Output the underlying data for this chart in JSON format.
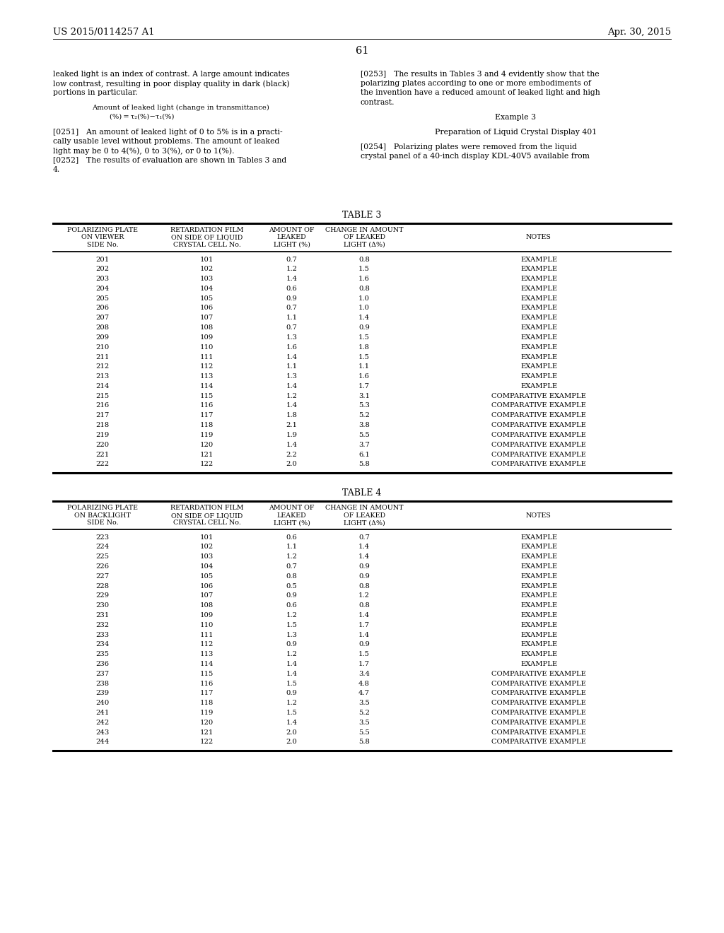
{
  "header_left": "US 2015/0114257 A1",
  "header_right": "Apr. 30, 2015",
  "page_number": "61",
  "left_col_lines": [
    "leaked light is an index of contrast. A large amount indicates",
    "low contrast, resulting in poor display quality in dark (black)",
    "portions in particular.",
    "BLANK",
    "INDENT_Amount of leaked light (change in transmittance)",
    "INDENT2_(%) = τ₂(%)−τ₁(%)",
    "BLANK",
    "[0251] An amount of leaked light of 0 to 5% is in a practi-",
    "cally usable level without problems. The amount of leaked",
    "light may be 0 to 4(%), 0 to 3(%), or 0 to 1(%).",
    "[0252] The results of evaluation are shown in Tables 3 and",
    "4."
  ],
  "right_col_lines": [
    "[0253] The results in Tables 3 and 4 evidently show that the",
    "polarizing plates according to one or more embodiments of",
    "the invention have a reduced amount of leaked light and high",
    "contrast.",
    "BLANK",
    "CENTER_Example 3",
    "BLANK",
    "CENTER_Preparation of Liquid Crystal Display 401",
    "BLANK",
    "[0254] Polarizing plates were removed from the liquid",
    "crystal panel of a 40-inch display KDL-40V5 available from"
  ],
  "table3_title": "TABLE 3",
  "table3_col_headers_line1": [
    "POLARIZING PLATE",
    "RETARDATION FILM",
    "AMOUNT OF",
    "CHANGE IN AMOUNT",
    ""
  ],
  "table3_col_headers_line2": [
    "ON VIEWER",
    "ON SIDE OF LIQUID",
    "LEAKED",
    "OF LEAKED",
    "NOTES"
  ],
  "table3_col_headers_line3": [
    "SIDE No.",
    "CRYSTAL CELL No.",
    "LIGHT (%)",
    "LIGHT (Δ%)",
    ""
  ],
  "table3_data": [
    [
      "201",
      "101",
      "0.7",
      "0.8",
      "EXAMPLE"
    ],
    [
      "202",
      "102",
      "1.2",
      "1.5",
      "EXAMPLE"
    ],
    [
      "203",
      "103",
      "1.4",
      "1.6",
      "EXAMPLE"
    ],
    [
      "204",
      "104",
      "0.6",
      "0.8",
      "EXAMPLE"
    ],
    [
      "205",
      "105",
      "0.9",
      "1.0",
      "EXAMPLE"
    ],
    [
      "206",
      "106",
      "0.7",
      "1.0",
      "EXAMPLE"
    ],
    [
      "207",
      "107",
      "1.1",
      "1.4",
      "EXAMPLE"
    ],
    [
      "208",
      "108",
      "0.7",
      "0.9",
      "EXAMPLE"
    ],
    [
      "209",
      "109",
      "1.3",
      "1.5",
      "EXAMPLE"
    ],
    [
      "210",
      "110",
      "1.6",
      "1.8",
      "EXAMPLE"
    ],
    [
      "211",
      "111",
      "1.4",
      "1.5",
      "EXAMPLE"
    ],
    [
      "212",
      "112",
      "1.1",
      "1.1",
      "EXAMPLE"
    ],
    [
      "213",
      "113",
      "1.3",
      "1.6",
      "EXAMPLE"
    ],
    [
      "214",
      "114",
      "1.4",
      "1.7",
      "EXAMPLE"
    ],
    [
      "215",
      "115",
      "1.2",
      "3.1",
      "COMPARATIVE EXAMPLE"
    ],
    [
      "216",
      "116",
      "1.4",
      "5.3",
      "COMPARATIVE EXAMPLE"
    ],
    [
      "217",
      "117",
      "1.8",
      "5.2",
      "COMPARATIVE EXAMPLE"
    ],
    [
      "218",
      "118",
      "2.1",
      "3.8",
      "COMPARATIVE EXAMPLE"
    ],
    [
      "219",
      "119",
      "1.9",
      "5.5",
      "COMPARATIVE EXAMPLE"
    ],
    [
      "220",
      "120",
      "1.4",
      "3.7",
      "COMPARATIVE EXAMPLE"
    ],
    [
      "221",
      "121",
      "2.2",
      "6.1",
      "COMPARATIVE EXAMPLE"
    ],
    [
      "222",
      "122",
      "2.0",
      "5.8",
      "COMPARATIVE EXAMPLE"
    ]
  ],
  "table4_title": "TABLE 4",
  "table4_col_headers_line1": [
    "POLARIZING PLATE",
    "RETARDATION FILM",
    "AMOUNT OF",
    "CHANGE IN AMOUNT",
    ""
  ],
  "table4_col_headers_line2": [
    "ON BACKLIGHT",
    "ON SIDE OF LIQUID",
    "LEAKED",
    "OF LEAKED",
    "NOTES"
  ],
  "table4_col_headers_line3": [
    "SIDE No.",
    "CRYSTAL CELL No.",
    "LIGHT (%)",
    "LIGHT (Δ%)",
    ""
  ],
  "table4_data": [
    [
      "223",
      "101",
      "0.6",
      "0.7",
      "EXAMPLE"
    ],
    [
      "224",
      "102",
      "1.1",
      "1.4",
      "EXAMPLE"
    ],
    [
      "225",
      "103",
      "1.2",
      "1.4",
      "EXAMPLE"
    ],
    [
      "226",
      "104",
      "0.7",
      "0.9",
      "EXAMPLE"
    ],
    [
      "227",
      "105",
      "0.8",
      "0.9",
      "EXAMPLE"
    ],
    [
      "228",
      "106",
      "0.5",
      "0.8",
      "EXAMPLE"
    ],
    [
      "229",
      "107",
      "0.9",
      "1.2",
      "EXAMPLE"
    ],
    [
      "230",
      "108",
      "0.6",
      "0.8",
      "EXAMPLE"
    ],
    [
      "231",
      "109",
      "1.2",
      "1.4",
      "EXAMPLE"
    ],
    [
      "232",
      "110",
      "1.5",
      "1.7",
      "EXAMPLE"
    ],
    [
      "233",
      "111",
      "1.3",
      "1.4",
      "EXAMPLE"
    ],
    [
      "234",
      "112",
      "0.9",
      "0.9",
      "EXAMPLE"
    ],
    [
      "235",
      "113",
      "1.2",
      "1.5",
      "EXAMPLE"
    ],
    [
      "236",
      "114",
      "1.4",
      "1.7",
      "EXAMPLE"
    ],
    [
      "237",
      "115",
      "1.4",
      "3.4",
      "COMPARATIVE EXAMPLE"
    ],
    [
      "238",
      "116",
      "1.5",
      "4.8",
      "COMPARATIVE EXAMPLE"
    ],
    [
      "239",
      "117",
      "0.9",
      "4.7",
      "COMPARATIVE EXAMPLE"
    ],
    [
      "240",
      "118",
      "1.2",
      "3.5",
      "COMPARATIVE EXAMPLE"
    ],
    [
      "241",
      "119",
      "1.5",
      "5.2",
      "COMPARATIVE EXAMPLE"
    ],
    [
      "242",
      "120",
      "1.4",
      "3.5",
      "COMPARATIVE EXAMPLE"
    ],
    [
      "243",
      "121",
      "2.0",
      "5.5",
      "COMPARATIVE EXAMPLE"
    ],
    [
      "244",
      "122",
      "2.0",
      "5.8",
      "COMPARATIVE EXAMPLE"
    ]
  ],
  "bg_color": "#ffffff",
  "text_color": "#000000"
}
